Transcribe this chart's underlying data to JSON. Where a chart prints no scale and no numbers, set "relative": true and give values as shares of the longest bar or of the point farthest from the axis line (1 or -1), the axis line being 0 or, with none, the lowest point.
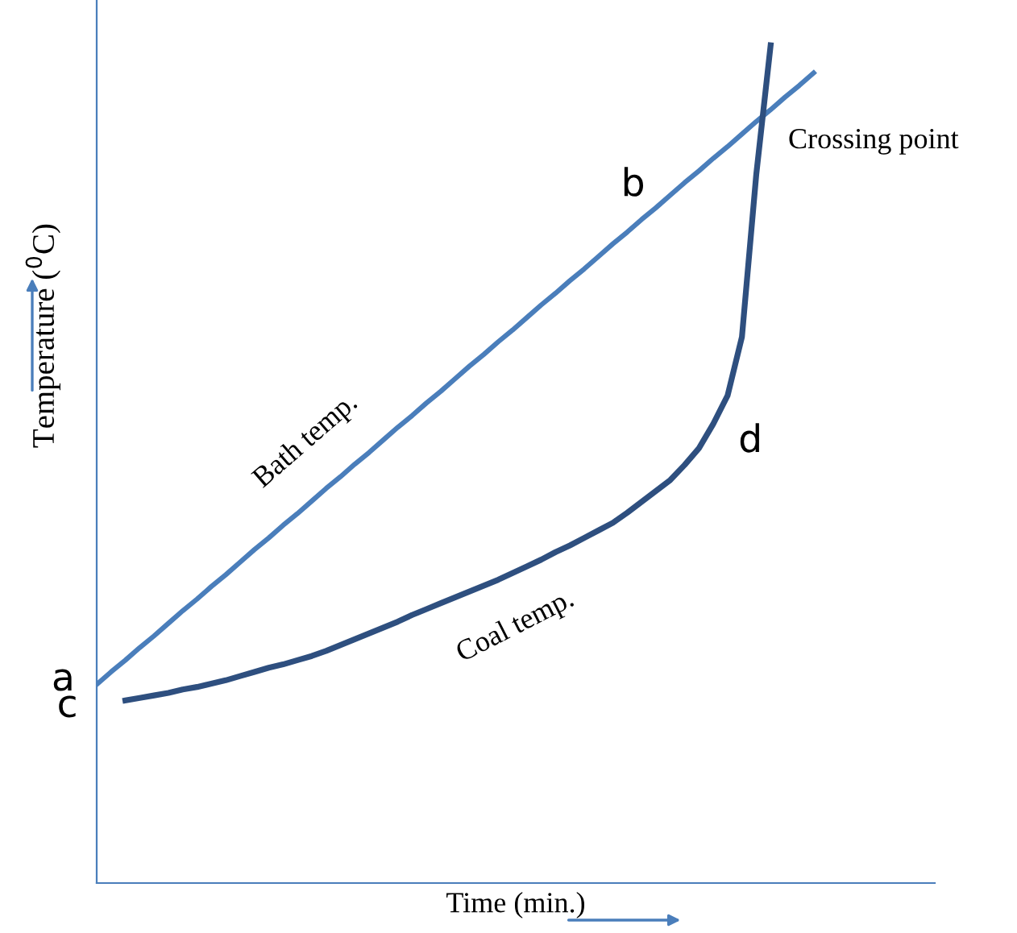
{
  "chart_data": {
    "type": "line",
    "relative": true,
    "xlabel": "Time (min.)",
    "ylabel": "Temperature ($^{0}$C)",
    "marker": "none",
    "line_style": "solid",
    "categories": [
      null,
      null,
      null,
      null,
      null,
      null,
      null,
      null,
      null,
      null,
      null,
      null,
      null,
      null,
      null,
      null,
      null,
      null,
      null,
      null,
      null,
      null,
      null,
      null,
      null,
      null,
      null,
      null,
      null,
      null,
      null,
      null,
      null,
      null,
      null,
      null,
      null,
      null,
      null,
      null,
      null,
      null,
      null,
      null,
      null,
      null,
      null,
      null,
      null,
      null,
      null
    ],
    "series": [
      {
        "name": "Bath temp.",
        "color": "#4a7ebb",
        "values": [
          0.237,
          0.252,
          0.266,
          0.281,
          0.295,
          0.31,
          0.325,
          0.339,
          0.354,
          0.368,
          0.383,
          0.398,
          0.412,
          0.427,
          0.441,
          0.456,
          0.471,
          0.485,
          0.5,
          0.514,
          0.529,
          0.544,
          0.558,
          0.573,
          0.587,
          0.602,
          0.617,
          0.631,
          0.646,
          0.66,
          0.675,
          0.69,
          0.704,
          0.719,
          0.733,
          0.748,
          0.763,
          0.777,
          0.792,
          0.806,
          0.821,
          0.836,
          0.85,
          0.865,
          0.879,
          0.894,
          0.909,
          0.923,
          0.938,
          0.952,
          0.967
        ]
      },
      {
        "name": "Coal temp.",
        "color": "#2e4f7f",
        "values": [
          null,
          null,
          0.218,
          0.221,
          0.224,
          0.227,
          0.231,
          0.234,
          0.238,
          0.242,
          0.247,
          0.252,
          0.257,
          0.261,
          0.266,
          0.271,
          0.277,
          0.284,
          0.291,
          0.298,
          0.305,
          0.312,
          0.32,
          0.327,
          0.334,
          0.341,
          0.348,
          0.355,
          0.362,
          0.37,
          0.378,
          0.386,
          0.395,
          0.403,
          0.412,
          0.421,
          0.43,
          0.442,
          0.455,
          0.468,
          0.481,
          0.499,
          0.519,
          0.548,
          0.582,
          0.652,
          0.846,
          1.0,
          null,
          null,
          null
        ]
      }
    ],
    "annotations": [
      "a",
      "c",
      "b",
      "d",
      "Crossing point"
    ]
  }
}
